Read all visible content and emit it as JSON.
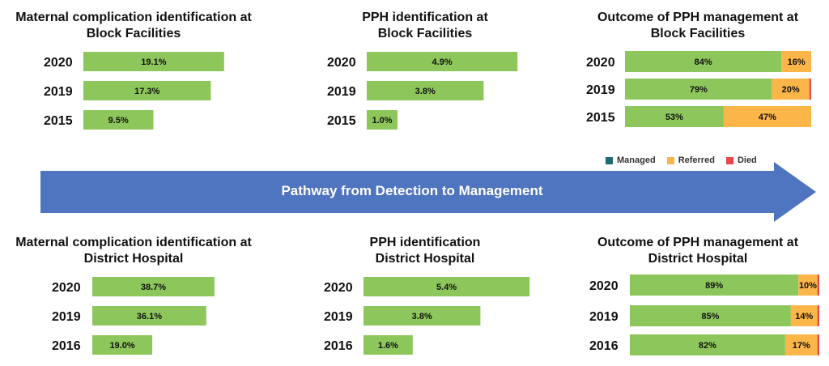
{
  "arrow": {
    "label": "Pathway from Detection to Management",
    "color": "#4f74c0"
  },
  "legend": [
    {
      "name": "Managed",
      "color": "#1f6b6e"
    },
    {
      "name": "Referred",
      "color": "#fbb549"
    },
    {
      "name": "Died",
      "color": "#e8474c"
    }
  ],
  "colors": {
    "green": "#8dc65a",
    "orange": "#fbb549",
    "red": "#e8474c"
  },
  "chart_data": [
    {
      "type": "bar",
      "orientation": "horizontal",
      "title_lines": [
        "Maternal complication identification at",
        "Block Facilities"
      ],
      "categories": [
        "2020",
        "2019",
        "2015"
      ],
      "values": [
        19.1,
        17.3,
        9.5
      ],
      "labels": [
        "19.1%",
        "17.3%",
        "9.5%"
      ]
    },
    {
      "type": "bar",
      "orientation": "horizontal",
      "title_lines": [
        "PPH identification at",
        "Block Facilities"
      ],
      "categories": [
        "2020",
        "2019",
        "2015"
      ],
      "values": [
        4.9,
        3.8,
        1.0
      ],
      "labels": [
        "4.9%",
        "3.8%",
        "1.0%"
      ]
    },
    {
      "type": "bar",
      "orientation": "horizontal",
      "stacked": true,
      "title_lines": [
        "Outcome of PPH management at",
        "Block Facilities"
      ],
      "categories": [
        "2020",
        "2019",
        "2015"
      ],
      "series": [
        {
          "name": "Managed",
          "values": [
            84,
            79,
            53
          ],
          "labels": [
            "84%",
            "79%",
            "53%"
          ]
        },
        {
          "name": "Referred",
          "values": [
            16,
            20,
            47
          ],
          "labels": [
            "16%",
            "20%",
            "47%"
          ]
        },
        {
          "name": "Died",
          "values": [
            0,
            1,
            0
          ],
          "labels": [
            "",
            "",
            ""
          ]
        }
      ]
    },
    {
      "type": "bar",
      "orientation": "horizontal",
      "title_lines": [
        "Maternal complication identification at",
        "District Hospital"
      ],
      "categories": [
        "2020",
        "2019",
        "2016"
      ],
      "values": [
        38.7,
        36.1,
        19.0
      ],
      "labels": [
        "38.7%",
        "36.1%",
        "19.0%"
      ]
    },
    {
      "type": "bar",
      "orientation": "horizontal",
      "title_lines": [
        "PPH identification",
        "District Hospital"
      ],
      "categories": [
        "2020",
        "2019",
        "2016"
      ],
      "values": [
        5.4,
        3.8,
        1.6
      ],
      "labels": [
        "5.4%",
        "3.8%",
        "1.6%"
      ]
    },
    {
      "type": "bar",
      "orientation": "horizontal",
      "stacked": true,
      "title_lines": [
        "Outcome of PPH management at",
        "District Hospital"
      ],
      "categories": [
        "2020",
        "2019",
        "2016"
      ],
      "series": [
        {
          "name": "Managed",
          "values": [
            89,
            85,
            82
          ],
          "labels": [
            "89%",
            "85%",
            "82%"
          ]
        },
        {
          "name": "Referred",
          "values": [
            10,
            14,
            17
          ],
          "labels": [
            "10%",
            "14%",
            "17%"
          ]
        },
        {
          "name": "Died",
          "values": [
            1,
            1,
            1
          ],
          "labels": [
            "",
            "",
            ""
          ]
        }
      ]
    }
  ]
}
